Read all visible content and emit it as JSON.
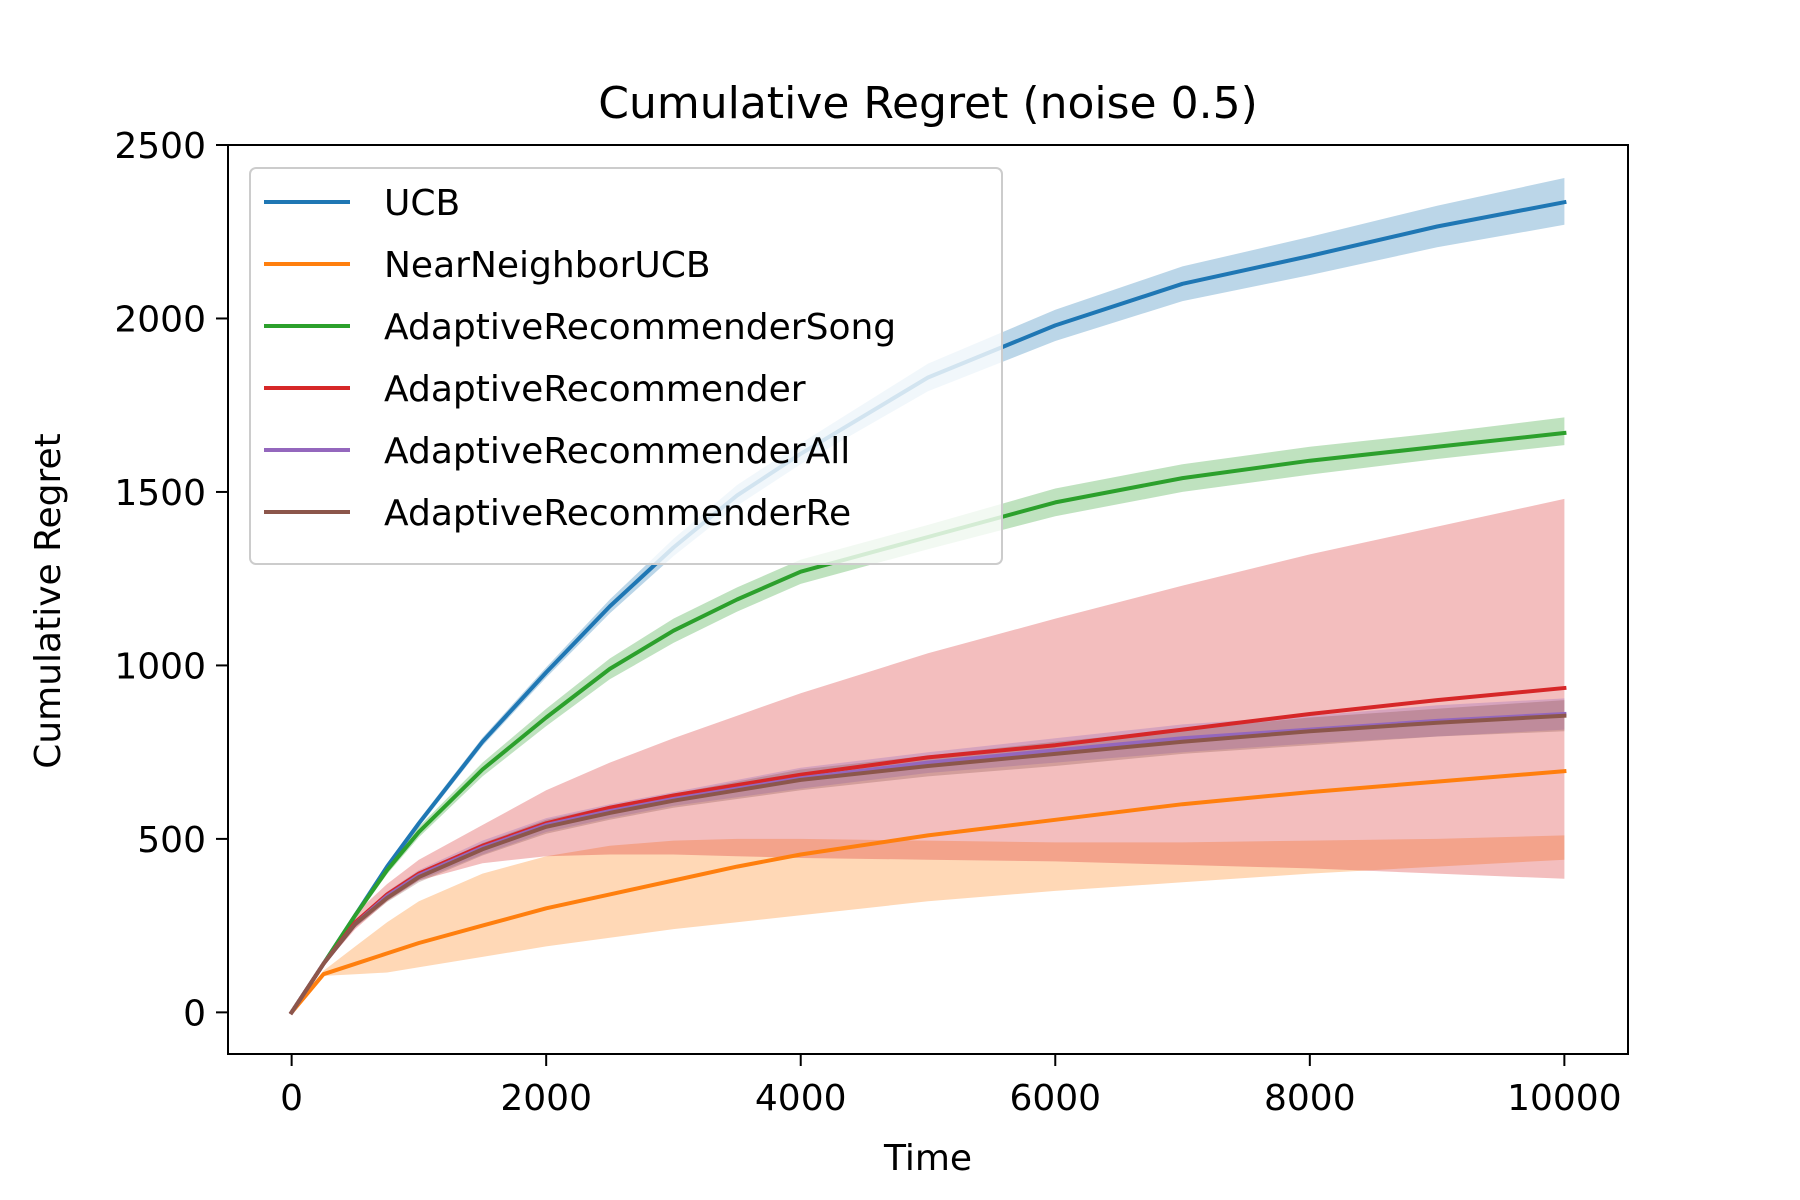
{
  "chart_data": {
    "type": "line",
    "title": "Cumulative Regret (noise 0.5)",
    "xlabel": "Time",
    "ylabel": "Cumulative Regret",
    "xlim": [
      -500,
      10500
    ],
    "ylim": [
      -120,
      2500
    ],
    "xticks": [
      0,
      2000,
      4000,
      6000,
      8000,
      10000
    ],
    "yticks": [
      0,
      500,
      1000,
      1500,
      2000,
      2500
    ],
    "grid": false,
    "legend_position": "upper-left",
    "x": [
      0,
      250,
      500,
      750,
      1000,
      1500,
      2000,
      2500,
      3000,
      3500,
      4000,
      5000,
      6000,
      7000,
      8000,
      9000,
      10000
    ],
    "series": [
      {
        "name": "UCB",
        "color": "#1f77b4",
        "values": [
          0,
          140,
          280,
          420,
          545,
          780,
          980,
          1170,
          1340,
          1490,
          1610,
          1830,
          1980,
          2100,
          2180,
          2265,
          2335
        ],
        "lower": [
          0,
          135,
          272,
          410,
          535,
          768,
          965,
          1150,
          1315,
          1460,
          1580,
          1790,
          1935,
          2050,
          2125,
          2205,
          2270
        ],
        "upper": [
          0,
          145,
          288,
          430,
          555,
          792,
          995,
          1190,
          1365,
          1520,
          1640,
          1870,
          2025,
          2150,
          2235,
          2325,
          2405
        ]
      },
      {
        "name": "NearNeighborUCB",
        "color": "#ff7f0e",
        "values": [
          0,
          110,
          140,
          170,
          200,
          250,
          300,
          340,
          380,
          420,
          455,
          510,
          555,
          600,
          635,
          665,
          695
        ],
        "lower": [
          0,
          105,
          110,
          115,
          130,
          160,
          190,
          215,
          240,
          260,
          280,
          320,
          350,
          375,
          400,
          420,
          440
        ],
        "upper": [
          0,
          120,
          190,
          260,
          320,
          400,
          450,
          480,
          495,
          500,
          500,
          495,
          490,
          490,
          495,
          500,
          510
        ]
      },
      {
        "name": "AdaptiveRecommenderSong",
        "color": "#2ca02c",
        "values": [
          0,
          140,
          280,
          410,
          520,
          700,
          850,
          990,
          1100,
          1190,
          1270,
          1370,
          1470,
          1540,
          1590,
          1630,
          1670
        ],
        "lower": [
          0,
          135,
          272,
          398,
          505,
          680,
          825,
          960,
          1065,
          1155,
          1235,
          1335,
          1430,
          1500,
          1550,
          1595,
          1635
        ],
        "upper": [
          0,
          145,
          288,
          422,
          535,
          720,
          875,
          1020,
          1135,
          1225,
          1305,
          1405,
          1510,
          1580,
          1630,
          1670,
          1715
        ]
      },
      {
        "name": "AdaptiveRecommender",
        "color": "#d62728",
        "values": [
          0,
          140,
          260,
          340,
          400,
          480,
          545,
          590,
          625,
          655,
          685,
          735,
          770,
          815,
          860,
          900,
          935
        ],
        "lower": [
          0,
          135,
          240,
          320,
          380,
          430,
          450,
          455,
          455,
          450,
          445,
          440,
          435,
          425,
          415,
          400,
          385
        ],
        "upper": [
          0,
          145,
          285,
          370,
          440,
          540,
          640,
          720,
          790,
          855,
          920,
          1035,
          1135,
          1230,
          1320,
          1400,
          1480
        ]
      },
      {
        "name": "AdaptiveRecommenderAll",
        "color": "#9467bd",
        "values": [
          0,
          140,
          255,
          335,
          395,
          475,
          540,
          580,
          615,
          645,
          675,
          720,
          755,
          790,
          815,
          840,
          860
        ],
        "lower": [
          0,
          135,
          245,
          322,
          380,
          455,
          520,
          560,
          595,
          620,
          645,
          690,
          720,
          750,
          775,
          795,
          815
        ],
        "upper": [
          0,
          145,
          265,
          348,
          410,
          495,
          560,
          600,
          635,
          670,
          705,
          750,
          790,
          830,
          855,
          885,
          905
        ]
      },
      {
        "name": "AdaptiveRecommenderRe",
        "color": "#8c564b",
        "values": [
          0,
          140,
          255,
          330,
          390,
          470,
          535,
          575,
          610,
          640,
          670,
          710,
          745,
          780,
          810,
          835,
          855
        ],
        "lower": [
          0,
          135,
          245,
          318,
          375,
          452,
          515,
          555,
          590,
          615,
          640,
          680,
          710,
          745,
          770,
          795,
          810
        ],
        "upper": [
          0,
          145,
          265,
          342,
          405,
          488,
          555,
          595,
          630,
          665,
          700,
          740,
          780,
          815,
          850,
          875,
          900
        ]
      }
    ]
  }
}
